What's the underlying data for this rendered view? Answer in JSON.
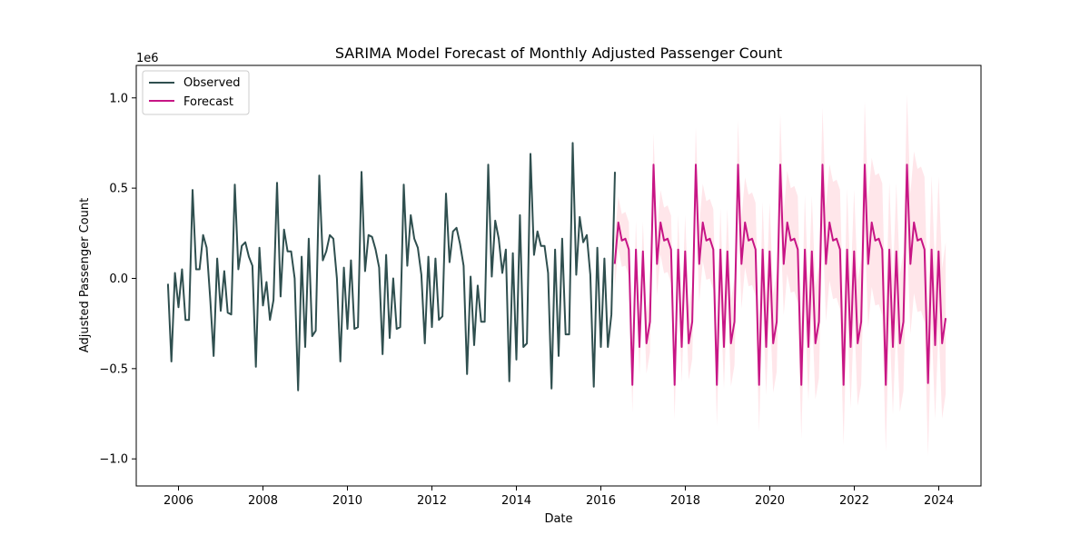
{
  "chart_data": {
    "type": "line",
    "title": "SARIMA Model Forecast of Monthly Adjusted Passenger Count",
    "xlabel": "Date",
    "ylabel": "Adjusted Passenger Count",
    "y_scale_label": "1e6",
    "xlim": [
      2005.0,
      2025.0
    ],
    "ylim": [
      -1.15,
      1.18
    ],
    "x_ticks": [
      2006,
      2008,
      2010,
      2012,
      2014,
      2016,
      2018,
      2020,
      2022,
      2024
    ],
    "x_tick_labels": [
      "2006",
      "2008",
      "2010",
      "2012",
      "2014",
      "2016",
      "2018",
      "2020",
      "2022",
      "2024"
    ],
    "y_ticks": [
      -1.0,
      -0.5,
      0.0,
      0.5,
      1.0
    ],
    "y_tick_labels": [
      "−1.0",
      "−0.5",
      "0.0",
      "0.5",
      "1.0"
    ],
    "legend_position": "top-left",
    "grid": false,
    "series": [
      {
        "name": "Observed",
        "color": "#2f4f4f",
        "x_start": 2005.75,
        "step": 0.0833333,
        "values": [
          -0.03,
          -0.46,
          0.03,
          -0.16,
          0.05,
          -0.23,
          -0.23,
          0.49,
          0.05,
          0.05,
          0.24,
          0.17,
          -0.11,
          -0.43,
          0.11,
          -0.18,
          0.04,
          -0.19,
          -0.2,
          0.52,
          0.05,
          0.18,
          0.2,
          0.12,
          0.07,
          -0.49,
          0.17,
          -0.15,
          -0.02,
          -0.23,
          -0.12,
          0.53,
          -0.1,
          0.27,
          0.15,
          0.15,
          0.0,
          -0.62,
          0.12,
          -0.38,
          0.22,
          -0.32,
          -0.29,
          0.57,
          0.1,
          0.15,
          0.24,
          0.22,
          0.0,
          -0.46,
          0.06,
          -0.28,
          0.1,
          -0.28,
          -0.27,
          0.59,
          0.04,
          0.24,
          0.23,
          0.16,
          0.06,
          -0.42,
          0.13,
          -0.33,
          0.0,
          -0.28,
          -0.27,
          0.52,
          0.07,
          0.35,
          0.22,
          0.17,
          0.02,
          -0.36,
          0.12,
          -0.27,
          0.11,
          -0.23,
          -0.21,
          0.47,
          0.09,
          0.26,
          0.28,
          0.19,
          0.07,
          -0.53,
          0.01,
          -0.37,
          -0.04,
          -0.24,
          -0.24,
          0.63,
          0.01,
          0.32,
          0.22,
          0.03,
          0.16,
          -0.57,
          0.14,
          -0.45,
          0.35,
          -0.38,
          -0.36,
          0.69,
          0.13,
          0.26,
          0.18,
          0.18,
          0.03,
          -0.61,
          0.16,
          -0.43,
          0.22,
          -0.31,
          -0.31,
          0.75,
          0.02,
          0.34,
          0.2,
          0.24,
          0.02,
          -0.6,
          0.17,
          -0.38,
          0.11,
          -0.38,
          -0.2,
          0.59
        ]
      },
      {
        "name": "Forecast",
        "color": "#c71585",
        "x_start": 2016.33,
        "step": 0.0833333,
        "values": [
          0.08,
          0.31,
          0.21,
          0.22,
          0.16,
          -0.59,
          0.16,
          -0.38,
          0.15,
          -0.36,
          -0.24,
          0.63,
          0.08,
          0.31,
          0.21,
          0.22,
          0.16,
          -0.59,
          0.16,
          -0.38,
          0.15,
          -0.36,
          -0.24,
          0.63,
          0.08,
          0.31,
          0.21,
          0.22,
          0.16,
          -0.59,
          0.16,
          -0.38,
          0.15,
          -0.36,
          -0.24,
          0.63,
          0.08,
          0.31,
          0.21,
          0.22,
          0.16,
          -0.59,
          0.16,
          -0.38,
          0.15,
          -0.36,
          -0.24,
          0.63,
          0.08,
          0.31,
          0.21,
          0.22,
          0.16,
          -0.59,
          0.16,
          -0.38,
          0.15,
          -0.36,
          -0.24,
          0.63,
          0.08,
          0.31,
          0.21,
          0.22,
          0.16,
          -0.59,
          0.16,
          -0.38,
          0.15,
          -0.36,
          -0.24,
          0.63,
          0.08,
          0.31,
          0.21,
          0.22,
          0.16,
          -0.59,
          0.16,
          -0.38,
          0.15,
          -0.36,
          -0.24,
          0.63,
          0.08,
          0.31,
          0.21,
          0.22,
          0.16,
          -0.58,
          0.16,
          -0.37,
          0.15,
          -0.36,
          -0.22
        ]
      }
    ],
    "confidence_band": {
      "color": "#ffc0cb",
      "opacity": 0.4,
      "lower_values_at_start": -0.05,
      "upper_values_at_start": 0.22,
      "lower_values_at_end": -0.65,
      "upper_values_at_end": 0.24
    }
  }
}
